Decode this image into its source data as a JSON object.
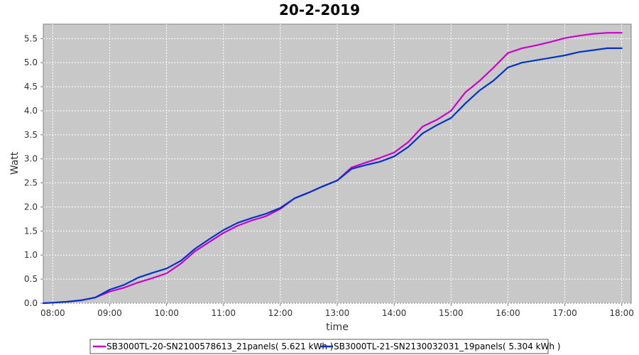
{
  "chart_data": {
    "type": "line",
    "title": "20-2-2019",
    "xlabel": "time",
    "ylabel": "Watt",
    "xlim": [
      "07:50",
      "18:10"
    ],
    "ylim": [
      0,
      5.8
    ],
    "x_ticks": [
      "08:00",
      "09:00",
      "10:00",
      "11:00",
      "12:00",
      "13:00",
      "14:00",
      "15:00",
      "16:00",
      "17:00",
      "18:00"
    ],
    "y_ticks": [
      "0.0",
      "0.5",
      "1.0",
      "1.5",
      "2.0",
      "2.5",
      "3.0",
      "3.5",
      "4.0",
      "4.5",
      "5.0",
      "5.5"
    ],
    "grid": true,
    "legend_position": "bottom",
    "series": [
      {
        "name": "SB3000TL-20-SN2100578613_21panels( 5.621 kWh )",
        "color": "#cc00cc",
        "x": [
          "07:50",
          "08:00",
          "08:15",
          "08:30",
          "08:45",
          "09:00",
          "09:15",
          "09:30",
          "09:45",
          "10:00",
          "10:15",
          "10:30",
          "10:45",
          "11:00",
          "11:15",
          "11:30",
          "11:45",
          "12:00",
          "12:15",
          "12:30",
          "12:45",
          "13:00",
          "13:15",
          "13:30",
          "13:45",
          "14:00",
          "14:15",
          "14:30",
          "14:45",
          "15:00",
          "15:15",
          "15:30",
          "15:45",
          "16:00",
          "16:15",
          "16:30",
          "16:45",
          "17:00",
          "17:15",
          "17:30",
          "17:45",
          "18:00"
        ],
        "y": [
          0.0,
          0.01,
          0.03,
          0.06,
          0.12,
          0.24,
          0.32,
          0.43,
          0.52,
          0.62,
          0.82,
          1.08,
          1.27,
          1.46,
          1.61,
          1.72,
          1.81,
          1.96,
          2.18,
          2.3,
          2.43,
          2.55,
          2.82,
          2.92,
          3.02,
          3.13,
          3.35,
          3.67,
          3.81,
          4.0,
          4.38,
          4.62,
          4.9,
          5.2,
          5.3,
          5.36,
          5.43,
          5.51,
          5.56,
          5.6,
          5.62,
          5.62
        ]
      },
      {
        "name": "SB3000TL-21-SN2130032031_19panels( 5.304 kWh )",
        "color": "#0033cc",
        "x": [
          "07:50",
          "08:00",
          "08:15",
          "08:30",
          "08:45",
          "09:00",
          "09:15",
          "09:30",
          "09:45",
          "10:00",
          "10:15",
          "10:30",
          "10:45",
          "11:00",
          "11:15",
          "11:30",
          "11:45",
          "12:00",
          "12:15",
          "12:30",
          "12:45",
          "13:00",
          "13:15",
          "13:30",
          "13:45",
          "14:00",
          "14:15",
          "14:30",
          "14:45",
          "15:00",
          "15:15",
          "15:30",
          "15:45",
          "16:00",
          "16:15",
          "16:30",
          "16:45",
          "17:00",
          "17:15",
          "17:30",
          "17:45",
          "18:00"
        ],
        "y": [
          0.0,
          0.01,
          0.03,
          0.06,
          0.12,
          0.28,
          0.38,
          0.53,
          0.63,
          0.72,
          0.88,
          1.13,
          1.33,
          1.52,
          1.67,
          1.77,
          1.86,
          1.98,
          2.18,
          2.3,
          2.43,
          2.55,
          2.79,
          2.87,
          2.94,
          3.05,
          3.25,
          3.53,
          3.7,
          3.85,
          4.15,
          4.42,
          4.63,
          4.9,
          5.0,
          5.05,
          5.1,
          5.15,
          5.22,
          5.26,
          5.3,
          5.3
        ]
      }
    ]
  }
}
